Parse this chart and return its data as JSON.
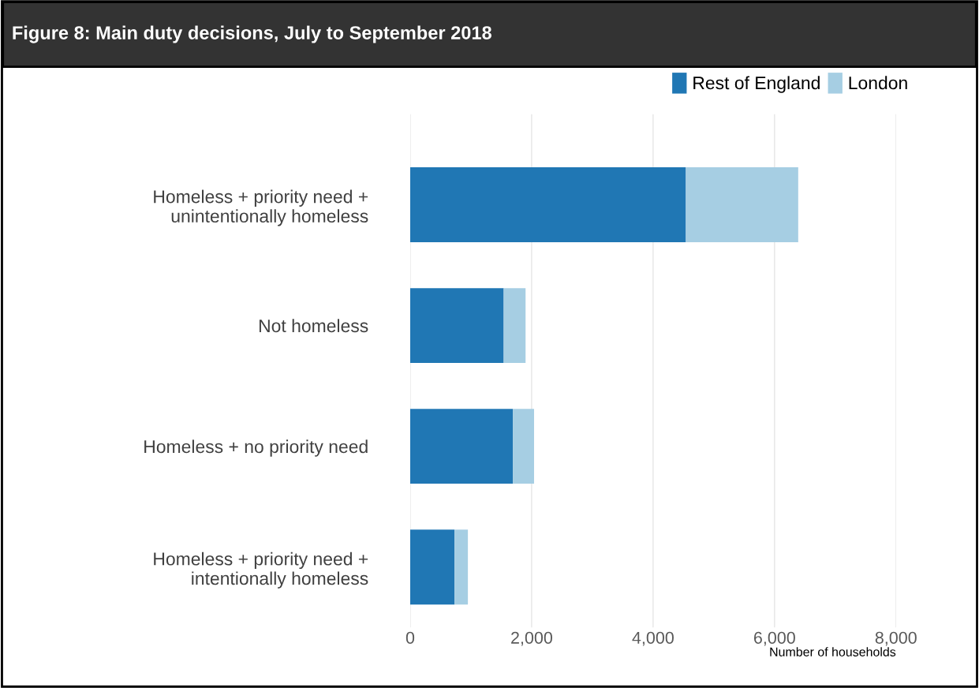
{
  "chart_data": {
    "type": "bar",
    "orientation": "horizontal",
    "stacked": true,
    "title": "Figure 8: Main duty decisions, July to September 2018",
    "xlabel": "Number of households",
    "categories": [
      "Homeless + priority need +\nunintentionally homeless",
      "Not homeless",
      "Homeless + no priority need",
      "Homeless + priority need +\nintentionally homeless"
    ],
    "series": [
      {
        "name": "Rest of England",
        "color": "#2077b4",
        "values": [
          4540,
          1540,
          1690,
          730
        ]
      },
      {
        "name": "London",
        "color": "#a6cee3",
        "values": [
          1850,
          360,
          350,
          220
        ]
      }
    ],
    "xlim": [
      0,
      8000
    ],
    "xticks": [
      {
        "value": 0,
        "label": "0"
      },
      {
        "value": 2000,
        "label": "2,000"
      },
      {
        "value": 4000,
        "label": "4,000"
      },
      {
        "value": 6000,
        "label": "6,000"
      },
      {
        "value": 8000,
        "label": "8,000"
      }
    ],
    "grid": "x",
    "legend": "top right"
  }
}
